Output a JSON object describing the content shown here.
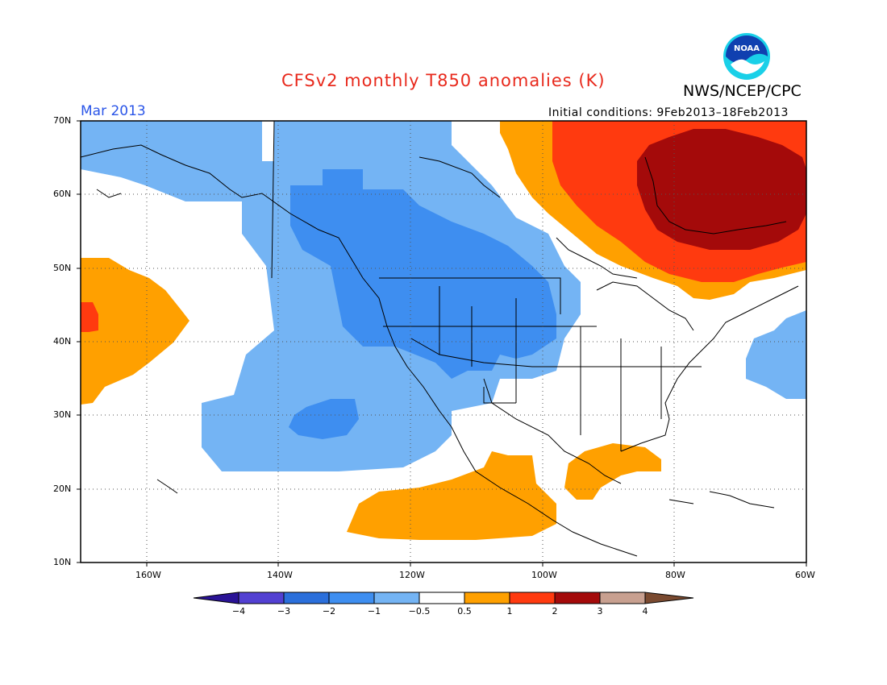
{
  "header": {
    "title": "CFSv2 monthly T850 anomalies (K)",
    "org": "NWS/NCEP/CPC",
    "month": "Mar 2013",
    "initial_conditions": "Initial conditions: 9Feb2013–18Feb2013",
    "logo_text": "NOAA"
  },
  "axes": {
    "lat_labels": [
      "70N",
      "60N",
      "50N",
      "40N",
      "30N",
      "20N",
      "10N"
    ],
    "lon_labels": [
      "160W",
      "140W",
      "120W",
      "100W",
      "80W",
      "60W"
    ]
  },
  "colorbar": {
    "labels": [
      "−4",
      "−3",
      "−2",
      "−1",
      "−0.5",
      "0.5",
      "1",
      "2",
      "3",
      "4"
    ],
    "colors": [
      "#2a1396",
      "#5240d2",
      "#2b6fdb",
      "#3e8ef0",
      "#74b4f4",
      "#ffffff",
      "#ffa000",
      "#ff3a0f",
      "#a40a0a",
      "#c8a090",
      "#7a4a30"
    ]
  },
  "chart_data": {
    "type": "heatmap",
    "title": "CFSv2 monthly T850 anomalies (K)",
    "units": "K",
    "lon_range": [
      -170,
      -60
    ],
    "lat_range": [
      10,
      70
    ],
    "levels": [
      -4,
      -3,
      -2,
      -1,
      -0.5,
      0.5,
      1,
      2,
      3,
      4
    ],
    "grid": "dotted",
    "regions": [
      {
        "area": "Alaska / NE Pacific",
        "category": "-1 to -0.5"
      },
      {
        "area": "Western US / Western Canada",
        "category": "-2 to -1"
      },
      {
        "area": "Central Pacific (~45N 165W)",
        "category": "0.5 to 1"
      },
      {
        "area": "Eastern Canada / Hudson Bay",
        "category": "2 to 3"
      },
      {
        "area": "Mexico / Gulf of Mexico",
        "category": "0.5 to 1"
      },
      {
        "area": "Western Atlantic (~38N 62W)",
        "category": "-1 to -0.5"
      }
    ]
  }
}
